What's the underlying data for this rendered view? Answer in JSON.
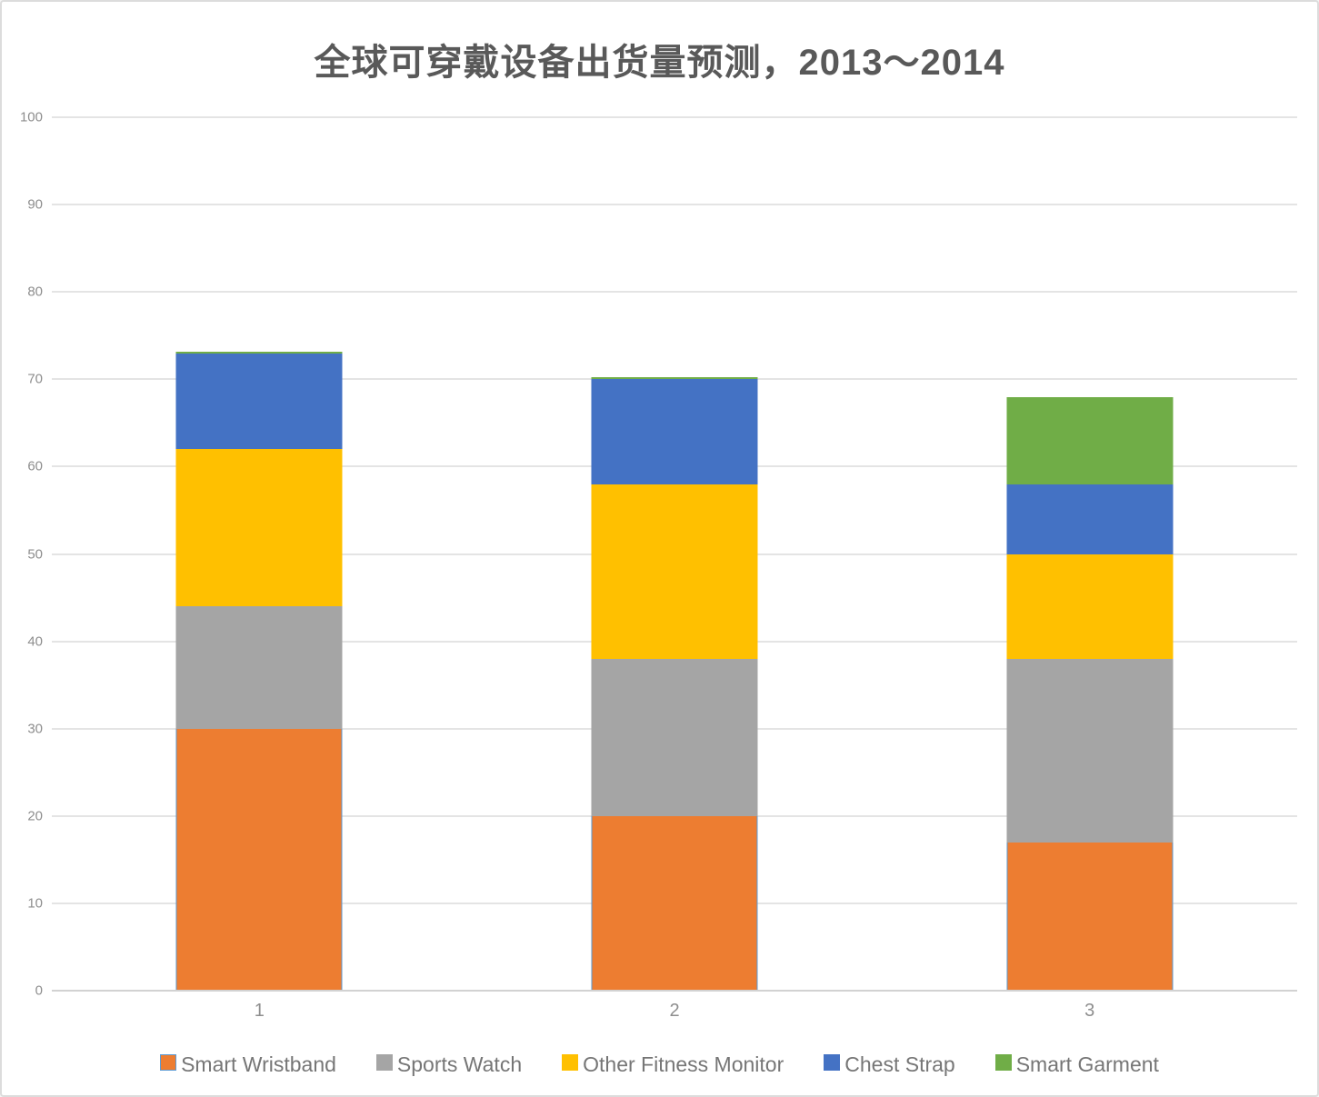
{
  "chart_data": {
    "type": "bar",
    "stacked": true,
    "title": "全球可穿戴设备出货量预测，2013～2014",
    "categories": [
      "1",
      "2",
      "3"
    ],
    "series": [
      {
        "name": "Smart Wristband",
        "color": "#ED7D31",
        "border_color": "#5B9BD5",
        "values": [
          30,
          20,
          17
        ]
      },
      {
        "name": "Sports Watch",
        "color": "#A5A5A5",
        "values": [
          14,
          18,
          21
        ]
      },
      {
        "name": "Other Fitness Monitor",
        "color": "#FFC000",
        "values": [
          18,
          20,
          12
        ]
      },
      {
        "name": "Chest Strap",
        "color": "#4472C4",
        "values": [
          11,
          12,
          8
        ]
      },
      {
        "name": "Smart Garment",
        "color": "#70AD47",
        "values": [
          0.2,
          0.2,
          10
        ]
      }
    ],
    "totals": [
      73.2,
      70.2,
      68
    ],
    "xlabel": "",
    "ylabel": "",
    "ylim": [
      0,
      100
    ],
    "yticks": [
      0,
      10,
      20,
      30,
      40,
      50,
      60,
      70,
      80,
      90,
      100
    ],
    "grid": true,
    "legend_position": "bottom"
  },
  "style": {
    "background": "#ffffff",
    "frame_border_color": "#dcdcdc",
    "grid_color": "#e4e4e4",
    "axis_line_color": "#d2d2d2",
    "title_color": "#595959",
    "tick_label_color": "#8e8e8e",
    "legend_text_color": "#767676"
  }
}
